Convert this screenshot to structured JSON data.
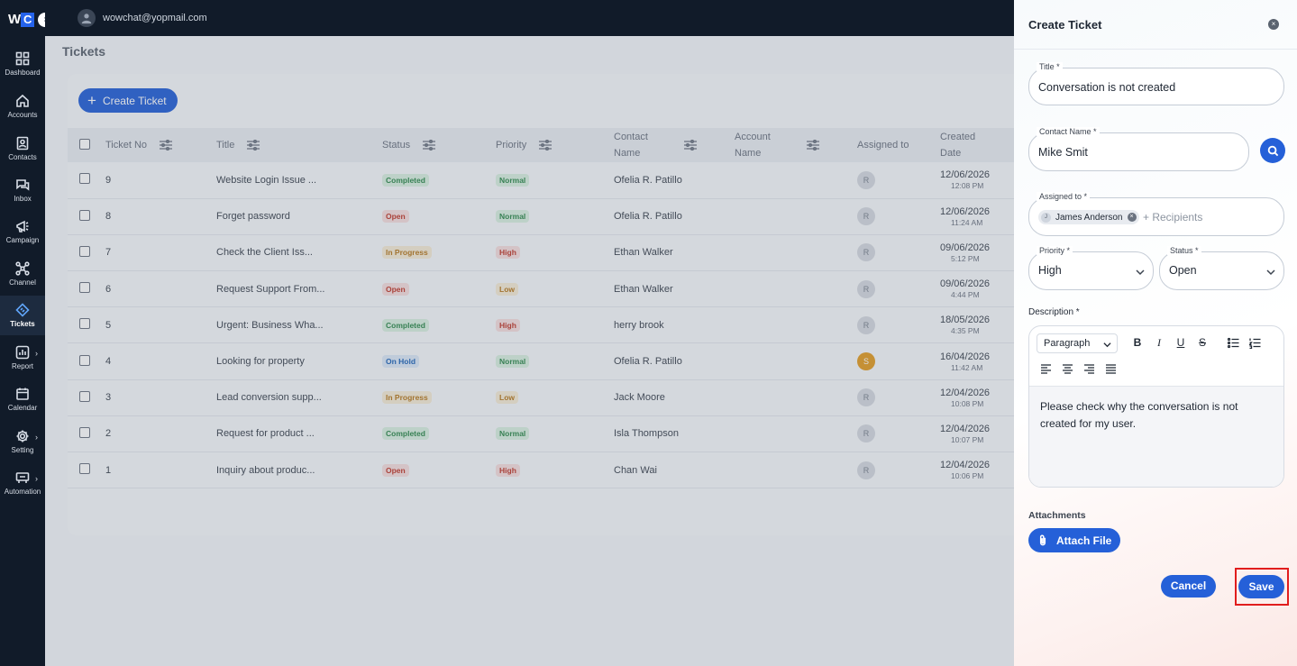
{
  "app": {
    "logo_w": "W",
    "logo_c": "C",
    "logo_toggle": "›",
    "user_email": "wowchat@yopmail.com"
  },
  "nav": [
    {
      "label": "Dashboard",
      "icon": "dashboard-icon"
    },
    {
      "label": "Accounts",
      "icon": "home-icon"
    },
    {
      "label": "Contacts",
      "icon": "contact-card-icon"
    },
    {
      "label": "Inbox",
      "icon": "chat-icon"
    },
    {
      "label": "Campaign",
      "icon": "megaphone-icon"
    },
    {
      "label": "Channel",
      "icon": "network-icon"
    },
    {
      "label": "Tickets",
      "icon": "ticket-icon",
      "active": true
    },
    {
      "label": "Report",
      "icon": "report-icon",
      "chevron": "›"
    },
    {
      "label": "Calendar",
      "icon": "calendar-icon"
    },
    {
      "label": "Setting",
      "icon": "gear-icon",
      "chevron": "›"
    },
    {
      "label": "Automation",
      "icon": "automation-icon",
      "chevron": "›"
    }
  ],
  "page": {
    "title": "Tickets",
    "create_button": "Create Ticket",
    "create_plus": "+"
  },
  "table": {
    "headers": {
      "ticket_no": "Ticket No",
      "title": "Title",
      "status": "Status",
      "priority": "Priority",
      "contact_1": "Contact",
      "contact_2": "Name",
      "account_1": "Account",
      "account_2": "Name",
      "assigned": "Assigned to",
      "created_1": "Created",
      "created_2": "Date"
    },
    "rows": [
      {
        "no": "9",
        "title": "Website Login Issue ...",
        "status": "Completed",
        "priority": "Normal",
        "contact": "Ofelia R. Patillo",
        "assigned": "R",
        "date": "12/06/2026",
        "time": "12:08 PM"
      },
      {
        "no": "8",
        "title": "Forget password",
        "status": "Open",
        "priority": "Normal",
        "contact": "Ofelia R. Patillo",
        "assigned": "R",
        "date": "12/06/2026",
        "time": "11:24 AM"
      },
      {
        "no": "7",
        "title": "Check the Client Iss...",
        "status": "In Progress",
        "priority": "High",
        "contact": "Ethan Walker",
        "assigned": "R",
        "date": "09/06/2026",
        "time": "5:12 PM"
      },
      {
        "no": "6",
        "title": "Request Support From...",
        "status": "Open",
        "priority": "Low",
        "contact": "Ethan Walker",
        "assigned": "R",
        "date": "09/06/2026",
        "time": "4:44 PM"
      },
      {
        "no": "5",
        "title": "Urgent: Business Wha...",
        "status": "Completed",
        "priority": "High",
        "contact": "herry brook",
        "assigned": "R",
        "date": "18/05/2026",
        "time": "4:35 PM"
      },
      {
        "no": "4",
        "title": "Looking for property",
        "status": "On Hold",
        "priority": "Normal",
        "contact": "Ofelia R. Patillo",
        "assigned": "S",
        "date": "16/04/2026",
        "time": "11:42 AM"
      },
      {
        "no": "3",
        "title": "Lead conversion supp...",
        "status": "In Progress",
        "priority": "Low",
        "contact": "Jack Moore",
        "assigned": "R",
        "date": "12/04/2026",
        "time": "10:08 PM"
      },
      {
        "no": "2",
        "title": "Request for product ...",
        "status": "Completed",
        "priority": "Normal",
        "contact": "Isla Thompson",
        "assigned": "R",
        "date": "12/04/2026",
        "time": "10:07 PM"
      },
      {
        "no": "1",
        "title": "Inquiry about produc...",
        "status": "Open",
        "priority": "High",
        "contact": "Chan Wai",
        "assigned": "R",
        "date": "12/04/2026",
        "time": "10:06 PM"
      }
    ]
  },
  "panel": {
    "title": "Create Ticket",
    "close": "×",
    "title_label": "Title *",
    "title_value": "Conversation is not created",
    "contact_label": "Contact Name *",
    "contact_value": "Mike Smit",
    "assigned_label": "Assigned to *",
    "assigned_chip_initial": "J",
    "assigned_chip": "James Anderson",
    "assigned_chip_remove": "×",
    "recipients_placeholder": "+ Recipients",
    "priority_label": "Priority *",
    "priority_value": "High",
    "status_label": "Status *",
    "status_value": "Open",
    "description_label": "Description *",
    "paragraph_select": "Paragraph",
    "bold": "B",
    "italic": "I",
    "underline": "U",
    "strike": "S",
    "description_text": "Please check why the conversation is not created for my user.",
    "attachments_label": "Attachments",
    "attach_button": "Attach File",
    "cancel_button": "Cancel",
    "save_button": "Save"
  },
  "colors": {
    "accent": "#2560d8",
    "sidebar": "#111b29",
    "highlight": "#e11d1d"
  }
}
